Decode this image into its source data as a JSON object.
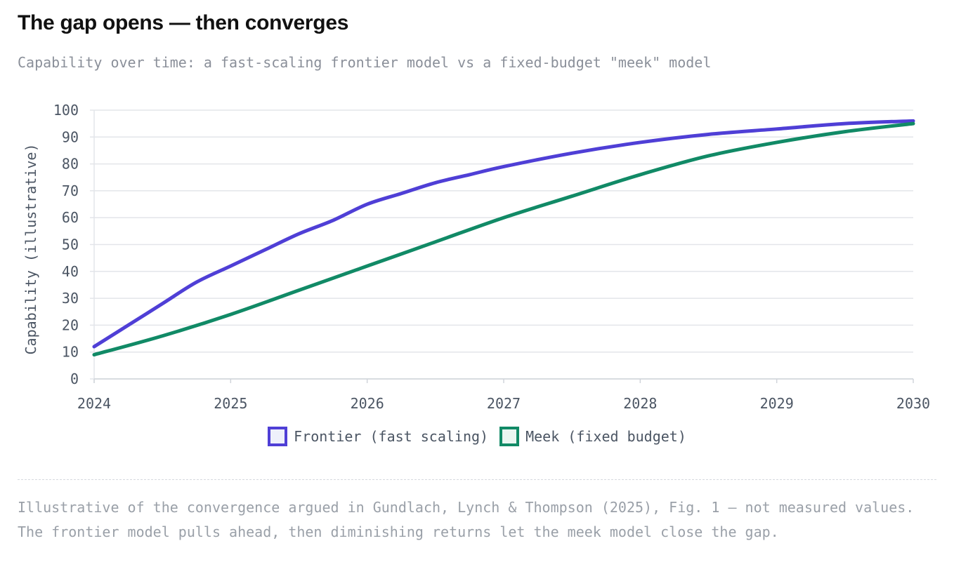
{
  "header": {
    "title": "The gap opens — then converges",
    "subtitle": "Capability over time: a fast-scaling frontier model vs a fixed-budget \"meek\" model"
  },
  "chart_data": {
    "type": "line",
    "ylabel": "Capability (illustrative)",
    "xlabel": "",
    "xlim": [
      2024,
      2030
    ],
    "ylim": [
      0,
      100
    ],
    "x_ticks": [
      2024,
      2025,
      2026,
      2027,
      2028,
      2029,
      2030
    ],
    "y_ticks": [
      0,
      10,
      20,
      30,
      40,
      50,
      60,
      70,
      80,
      90,
      100
    ],
    "grid": true,
    "legend_position": "bottom-center",
    "series": [
      {
        "name": "Frontier (fast scaling)",
        "color": "#4f3fd6",
        "x": [
          2024,
          2024.25,
          2024.5,
          2024.75,
          2025,
          2025.25,
          2025.5,
          2025.75,
          2026,
          2026.25,
          2026.5,
          2026.75,
          2027,
          2027.5,
          2028,
          2028.5,
          2029,
          2029.5,
          2030
        ],
        "y": [
          12,
          20,
          28,
          36,
          42,
          48,
          54,
          59,
          65,
          69,
          73,
          76,
          79,
          84,
          88,
          91,
          93,
          95,
          96
        ]
      },
      {
        "name": "Meek (fixed budget)",
        "color": "#118a66",
        "x": [
          2024,
          2024.5,
          2025,
          2025.5,
          2026,
          2026.5,
          2027,
          2027.5,
          2028,
          2028.5,
          2029,
          2029.5,
          2030
        ],
        "y": [
          9,
          16,
          24,
          33,
          42,
          51,
          60,
          68,
          76,
          83,
          88,
          92,
          95
        ]
      }
    ]
  },
  "footer": {
    "note": "Illustrative of the convergence argued in Gundlach, Lynch & Thompson (2025), Fig. 1 — not measured values. The frontier model pulls ahead, then diminishing returns let the meek model close the gap."
  }
}
